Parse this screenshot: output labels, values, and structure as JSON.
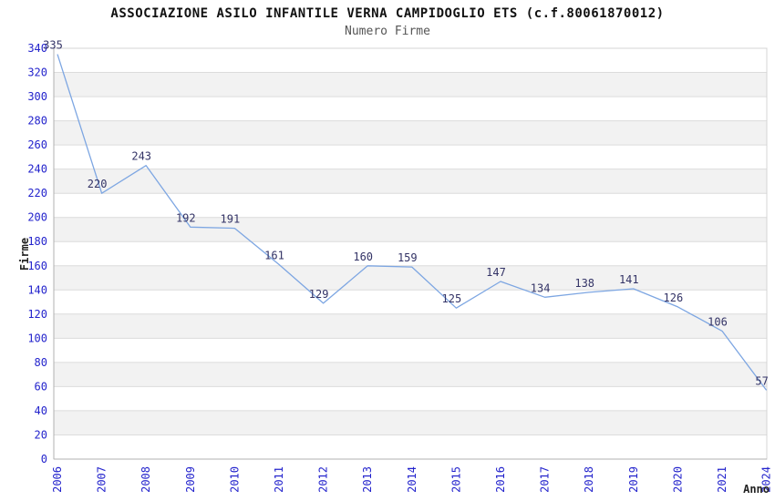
{
  "chart_data": {
    "type": "line",
    "title": "ASSOCIAZIONE ASILO INFANTILE VERNA CAMPIDOGLIO ETS (c.f.80061870012)",
    "subtitle": "Numero Firme",
    "xlabel": "Anno",
    "ylabel": "Firme",
    "categories": [
      "2006",
      "2007",
      "2008",
      "2009",
      "2010",
      "2011",
      "2012",
      "2013",
      "2014",
      "2015",
      "2016",
      "2017",
      "2018",
      "2019",
      "2020",
      "2021",
      "2024"
    ],
    "values": [
      335,
      220,
      243,
      192,
      191,
      161,
      129,
      160,
      159,
      125,
      147,
      134,
      138,
      141,
      126,
      106,
      57
    ],
    "ylim": [
      0,
      340
    ],
    "ytick_step": 20,
    "grid": true,
    "banded_background": true,
    "legend": "none",
    "colors": {
      "line": "#7da6e2",
      "tick_label": "#2323cc",
      "point_label": "#333366",
      "grid_line": "#dcdcdc",
      "band_fill": "#f2f2f2",
      "axis_line": "#b0b0b0",
      "border": "#d4d4d4",
      "title": "#111111",
      "subtitle": "#555555",
      "axis_title": "#222222",
      "background": "#ffffff"
    }
  }
}
